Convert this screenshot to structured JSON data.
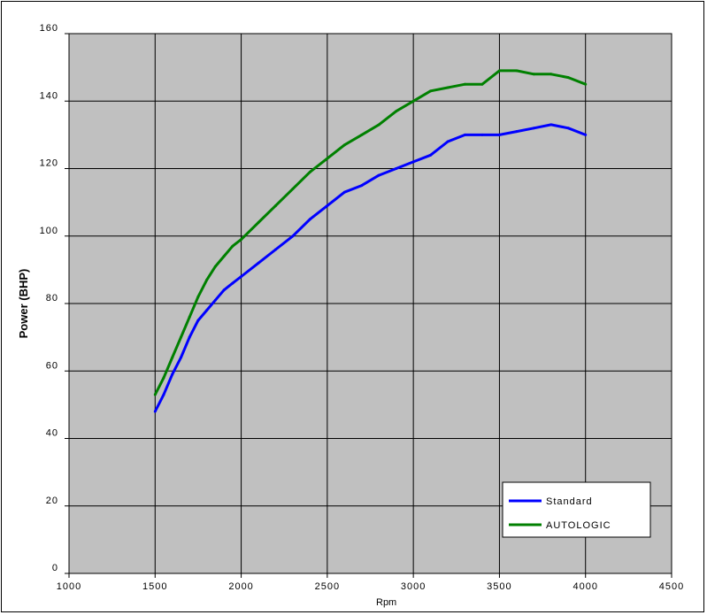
{
  "chart_data": {
    "type": "line",
    "title": "",
    "xlabel": "Rpm",
    "ylabel": "Power (BHP)",
    "xlim": [
      1000,
      4500
    ],
    "ylim": [
      0,
      160
    ],
    "x_ticks": [
      1000,
      1500,
      2000,
      2500,
      3000,
      3500,
      4000,
      4500
    ],
    "y_ticks": [
      0,
      20,
      40,
      60,
      80,
      100,
      120,
      140,
      160
    ],
    "grid": true,
    "legend_position": "bottom-right",
    "plot_background": "#c0c0c0",
    "series": [
      {
        "name": "Standard",
        "color": "#0000ff",
        "x": [
          1500,
          1550,
          1600,
          1650,
          1700,
          1750,
          1800,
          1850,
          1900,
          1950,
          2000,
          2100,
          2200,
          2300,
          2400,
          2500,
          2600,
          2700,
          2800,
          2900,
          3000,
          3100,
          3200,
          3300,
          3400,
          3500,
          3600,
          3700,
          3800,
          3900,
          4000
        ],
        "y": [
          48,
          53,
          59,
          64,
          70,
          75,
          78,
          81,
          84,
          86,
          88,
          92,
          96,
          100,
          105,
          109,
          113,
          115,
          118,
          120,
          122,
          124,
          128,
          130,
          130,
          130,
          131,
          132,
          133,
          132,
          130
        ]
      },
      {
        "name": "AUTOLOGIC",
        "color": "#008000",
        "x": [
          1500,
          1550,
          1600,
          1650,
          1700,
          1750,
          1800,
          1850,
          1900,
          1950,
          2000,
          2100,
          2200,
          2300,
          2400,
          2500,
          2600,
          2700,
          2800,
          2900,
          3000,
          3100,
          3200,
          3300,
          3400,
          3500,
          3600,
          3700,
          3800,
          3900,
          4000
        ],
        "y": [
          53,
          58,
          64,
          70,
          76,
          82,
          87,
          91,
          94,
          97,
          99,
          104,
          109,
          114,
          119,
          123,
          127,
          130,
          133,
          137,
          140,
          143,
          144,
          145,
          145,
          149,
          149,
          148,
          148,
          147,
          145
        ]
      }
    ]
  }
}
